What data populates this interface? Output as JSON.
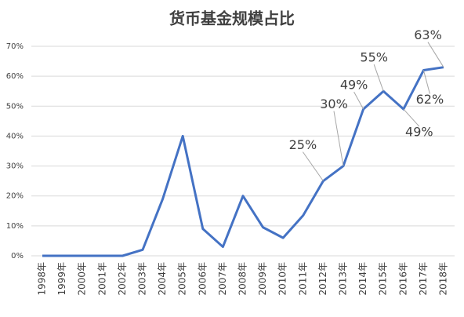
{
  "chart_data": {
    "type": "line",
    "title": "货币基金规模占比",
    "categories": [
      "1998年",
      "1999年",
      "2000年",
      "2001年",
      "2002年",
      "2003年",
      "2004年",
      "2005年",
      "2006年",
      "2007年",
      "2008年",
      "2009年",
      "2010年",
      "2011年",
      "2012年",
      "2013年",
      "2014年",
      "2015年",
      "2016年",
      "2017年",
      "2018年"
    ],
    "series": [
      {
        "color": "#4472c4",
        "values": [
          0,
          0,
          0,
          0,
          0,
          2,
          19,
          40,
          9,
          3,
          20,
          9.5,
          6,
          13.5,
          25,
          30,
          49,
          55,
          49,
          62,
          63
        ],
        "value_labels": [
          null,
          null,
          null,
          null,
          null,
          null,
          null,
          null,
          null,
          null,
          null,
          null,
          null,
          null,
          "25%",
          "30%",
          "49%",
          "55%",
          "49%",
          "62%",
          "63%"
        ]
      }
    ],
    "ylim": [
      0,
      70
    ],
    "yticks": [
      {
        "value": 0,
        "label": "0%"
      },
      {
        "value": 10,
        "label": "10%"
      },
      {
        "value": 20,
        "label": "20%"
      },
      {
        "value": 30,
        "label": "30%"
      },
      {
        "value": 40,
        "label": "40%"
      },
      {
        "value": 50,
        "label": "50%"
      },
      {
        "value": 60,
        "label": "60%"
      },
      {
        "value": 70,
        "label": "70%"
      }
    ],
    "grid": true
  }
}
